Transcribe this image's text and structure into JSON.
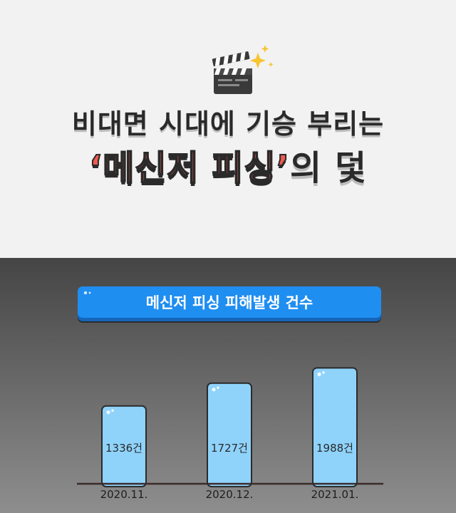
{
  "header": {
    "line1": "비대면 시대에 기승 부리는",
    "line2_quoted": "‘메신저 피싱’",
    "line2_rest": "의 덫"
  },
  "chart_data": {
    "type": "bar",
    "title": "메신저 피싱 피해발생 건수",
    "categories": [
      "2020.11.",
      "2020.12.",
      "2021.01."
    ],
    "values": [
      1336,
      1727,
      1988
    ],
    "value_labels": [
      "1336건",
      "1727건",
      "1988건"
    ],
    "ylim": [
      0,
      2200
    ],
    "grid": false,
    "bar_color": "#8fd3fb",
    "title_color": "#1f8ef1"
  }
}
